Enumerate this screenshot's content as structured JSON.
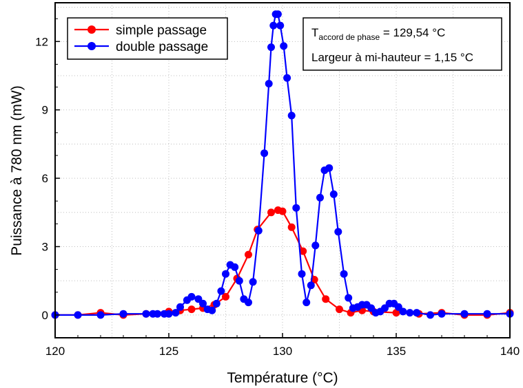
{
  "chart_data": {
    "type": "line",
    "xlabel": "Température (°C)",
    "ylabel": "Puissance à 780 nm (mW)",
    "xlim": [
      120,
      140
    ],
    "ylim": [
      -1,
      13.7
    ],
    "xticks": [
      120,
      125,
      130,
      135,
      140
    ],
    "yticks": [
      0,
      3,
      6,
      9,
      12
    ],
    "grid": true,
    "legend_position": "top-left",
    "series": [
      {
        "name": "simple passage",
        "color": "#ff0000",
        "x": [
          120,
          121,
          122,
          123,
          124,
          125,
          125.5,
          126,
          126.5,
          127,
          127.5,
          128,
          128.5,
          128.9,
          129.5,
          129.8,
          130,
          130.4,
          130.9,
          131.4,
          131.9,
          132.5,
          133,
          133.5,
          134,
          135,
          136,
          137,
          138,
          139,
          140
        ],
        "y": [
          0,
          0,
          0.1,
          0,
          0.05,
          0.15,
          0.2,
          0.25,
          0.3,
          0.45,
          0.8,
          1.6,
          2.65,
          3.75,
          4.5,
          4.6,
          4.55,
          3.85,
          2.8,
          1.55,
          0.7,
          0.25,
          0.1,
          0.2,
          0.15,
          0.1,
          0.05,
          0.1,
          0,
          0,
          0.1
        ]
      },
      {
        "name": "double passage",
        "color": "#0000ff",
        "x": [
          120,
          121,
          122,
          123,
          124,
          124.3,
          124.5,
          124.8,
          125,
          125.3,
          125.5,
          125.8,
          126,
          126.3,
          126.5,
          126.7,
          126.9,
          127.1,
          127.3,
          127.5,
          127.7,
          127.9,
          128.1,
          128.3,
          128.5,
          128.7,
          128.95,
          129.2,
          129.4,
          129.5,
          129.6,
          129.7,
          129.8,
          129.9,
          130.05,
          130.2,
          130.4,
          130.6,
          130.85,
          131.05,
          131.25,
          131.45,
          131.65,
          131.85,
          132.05,
          132.25,
          132.45,
          132.7,
          132.9,
          133.1,
          133.3,
          133.5,
          133.7,
          133.9,
          134.1,
          134.3,
          134.5,
          134.7,
          134.9,
          135.1,
          135.3,
          135.6,
          135.9,
          136.5,
          137,
          138,
          139,
          140
        ],
        "y": [
          0,
          0,
          0,
          0.05,
          0.05,
          0.05,
          0.05,
          0.05,
          0.05,
          0.1,
          0.35,
          0.65,
          0.8,
          0.7,
          0.5,
          0.25,
          0.2,
          0.5,
          1.05,
          1.8,
          2.2,
          2.1,
          1.5,
          0.7,
          0.55,
          1.45,
          3.7,
          7.1,
          10.15,
          11.75,
          12.7,
          13.2,
          13.2,
          12.7,
          11.8,
          10.4,
          8.75,
          4.7,
          1.8,
          0.55,
          1.3,
          3.05,
          5.15,
          6.35,
          6.45,
          5.3,
          3.65,
          1.8,
          0.75,
          0.3,
          0.35,
          0.45,
          0.45,
          0.3,
          0.1,
          0.15,
          0.3,
          0.5,
          0.5,
          0.35,
          0.15,
          0.1,
          0.1,
          0,
          0.05,
          0.05,
          0.05,
          0.05
        ]
      }
    ],
    "annotation": {
      "t_symbol": "T",
      "t_subscript": "accord de phase",
      "t_value": " = 129,54 °C",
      "fwhm": "Largeur à mi-hauteur = 1,15 °C"
    }
  }
}
